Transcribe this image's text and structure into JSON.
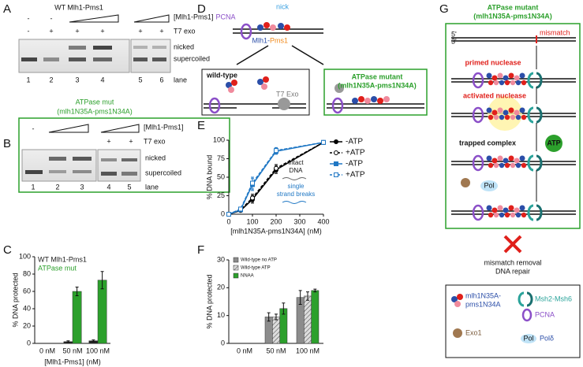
{
  "panel_labels": [
    "A",
    "B",
    "C",
    "D",
    "E",
    "F",
    "G"
  ],
  "panel_a": {
    "title": "WT Mlh1-Pms1",
    "row_labels": [
      "[Mlh1-Pms1]",
      "T7 exo"
    ],
    "mlh1_signs": [
      "-",
      "-"
    ],
    "t7_signs": [
      "-",
      "+",
      "+",
      "+",
      "+",
      "+"
    ],
    "band_labels": [
      "nicked",
      "supercoiled",
      "lane"
    ],
    "lanes": [
      "1",
      "2",
      "3",
      "4",
      "5",
      "6"
    ]
  },
  "panel_b": {
    "title": [
      "ATPase mut",
      "(mlh1N35A-pms1N34A)"
    ],
    "row_labels": [
      "[Mlh1-Pms1]",
      "T7 exo"
    ],
    "mlh1_signs": [
      "-"
    ],
    "t7_signs": [
      "+",
      "+"
    ],
    "band_labels": [
      "nicked",
      "supercoiled",
      "lane"
    ],
    "lanes": [
      "1",
      "2",
      "3",
      "4",
      "5"
    ]
  },
  "panel_c": {
    "type": "bar",
    "legend": "text",
    "categories": [
      "0 nM",
      "50 nM",
      "100 nM"
    ],
    "series": [
      {
        "name": "WT Mlh1-Pms1",
        "color": "#222222",
        "values": [
          0,
          2,
          3
        ],
        "errors": [
          0,
          1,
          1
        ]
      },
      {
        "name": "ATPase mut",
        "color": "#2ca02c",
        "values": [
          0,
          60,
          73
        ],
        "errors": [
          0,
          5,
          10
        ]
      }
    ],
    "ylim": [
      0,
      100
    ],
    "yticks": [
      0,
      20,
      40,
      60,
      80,
      100
    ],
    "xlabel": "[Mlh1-Pms1] (nM)",
    "ylabel": "% DNA protected"
  },
  "panel_d": {
    "pcna": "PCNA",
    "nick": "nick",
    "mlh1": "Mlh1-",
    "pms1": "Pms1",
    "wild_type": "wild-type",
    "t7": "T7 Exo",
    "mutant": [
      "ATPase mutant",
      "(mlh1N35A-pms1N34A)"
    ]
  },
  "panel_e": {
    "type": "line",
    "legend": "right",
    "x": [
      0,
      50,
      100,
      200,
      400
    ],
    "series": [
      {
        "name": "-ATP",
        "color": "#000000",
        "marker": "circle",
        "filled": true,
        "dashed": false,
        "values": [
          0,
          5,
          20,
          60,
          97
        ],
        "errors": [
          0,
          2,
          5,
          5,
          2
        ]
      },
      {
        "name": "+ATP",
        "color": "#000000",
        "marker": "circle",
        "filled": false,
        "dashed": true,
        "values": [
          0,
          6,
          22,
          62,
          97
        ],
        "errors": [
          0,
          2,
          5,
          5,
          2
        ]
      },
      {
        "name": "-ATP",
        "color": "#1f77c4",
        "marker": "square",
        "filled": true,
        "dashed": false,
        "values": [
          0,
          6,
          40,
          85,
          97
        ],
        "errors": [
          0,
          2,
          8,
          4,
          2
        ]
      },
      {
        "name": "+ATP",
        "color": "#1f77c4",
        "marker": "square",
        "filled": false,
        "dashed": true,
        "values": [
          0,
          7,
          42,
          86,
          97
        ],
        "errors": [
          0,
          2,
          8,
          4,
          2
        ]
      }
    ],
    "xlim": [
      0,
      400
    ],
    "xticks": [
      0,
      100,
      200,
      300,
      400
    ],
    "ylim": [
      0,
      100
    ],
    "yticks": [
      0,
      25,
      50,
      75,
      100
    ],
    "xlabel": "[mlh1N35A-pms1N34A] (nM)",
    "ylabel": "% DNA bound",
    "annotations": [
      "intact",
      "DNA",
      "single",
      "strand breaks"
    ]
  },
  "panel_f": {
    "type": "bar",
    "legend": "swatch",
    "categories": [
      "0 nM",
      "50 nM",
      "100 nM"
    ],
    "series": [
      {
        "name": "Wild-type no ATP",
        "color": "#8c8c8c",
        "values": [
          0,
          9.5,
          16.5
        ],
        "errors": [
          0,
          1.5,
          2.5
        ]
      },
      {
        "name": "Wild-type ATP",
        "color": "#d0d0d0",
        "pattern": "hatch",
        "values": [
          0,
          9.5,
          17
        ],
        "errors": [
          0,
          1,
          1.5
        ]
      },
      {
        "name": "NNAA",
        "color": "#2ca02c",
        "values": [
          0,
          12.5,
          19
        ],
        "errors": [
          0,
          2,
          0.5
        ]
      }
    ],
    "ylim": [
      0,
      30
    ],
    "yticks": [
      0,
      10,
      20,
      30
    ],
    "ylabel": "% DNA protected"
  },
  "panel_g": {
    "title": [
      "ATPase mutant",
      "(mlh1N35A-pms1N34A)"
    ],
    "five": "5'",
    "three": "3'",
    "mismatch": "mismatch",
    "steps": [
      "primed nuclease",
      "activated nuclease",
      "trapped complex"
    ],
    "atp": "ATP",
    "pol": "Pol",
    "outcome": [
      "mismatch removal",
      "DNA repair"
    ],
    "legend": [
      "mlh1N35A-",
      "pms1N34A",
      "Msh2-Msh6",
      "PCNA",
      "Exo1",
      "Pol",
      "Polδ"
    ]
  }
}
